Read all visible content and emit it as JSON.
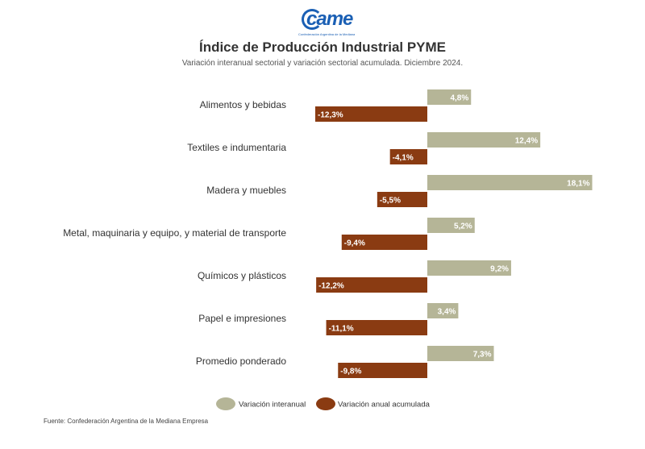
{
  "logo": {
    "name": "came",
    "subtitle": "Confederación Argentina de la Mediana Empresa"
  },
  "title": "Índice de Producción Industrial PYME",
  "subtitle": "Variación interanual sectorial y variación sectorial acumulada. Diciembre 2024.",
  "footer": "Fuente: Confederación Argentina de la Mediana Empresa",
  "colors": {
    "interanual": "#b5b597",
    "acumulada": "#8a3b12"
  },
  "chart_data": {
    "type": "bar",
    "orientation": "horizontal",
    "categories": [
      "Alimentos y bebidas",
      "Textiles e indumentaria",
      "Madera y muebles",
      "Metal, maquinaria y equipo, y material de transporte",
      "Químicos y plásticos",
      "Papel e impresiones",
      "Promedio ponderado"
    ],
    "series": [
      {
        "name": "Variación interanual",
        "values": [
          4.8,
          12.4,
          18.1,
          5.2,
          9.2,
          3.4,
          7.3
        ],
        "labels": [
          "4,8%",
          "12,4%",
          "18,1%",
          "5,2%",
          "9,2%",
          "3,4%",
          "7,3%"
        ]
      },
      {
        "name": "Variación anual acumulada",
        "values": [
          -12.3,
          -4.1,
          -5.5,
          -9.4,
          -12.2,
          -11.1,
          -9.8
        ],
        "labels": [
          "-12,3%",
          "-4,1%",
          "-5,5%",
          "-9,4%",
          "-12,2%",
          "-11,1%",
          "-9,8%"
        ]
      }
    ],
    "xlim": [
      -12.3,
      18.1
    ],
    "legend": "bottom-center",
    "grid": false
  }
}
